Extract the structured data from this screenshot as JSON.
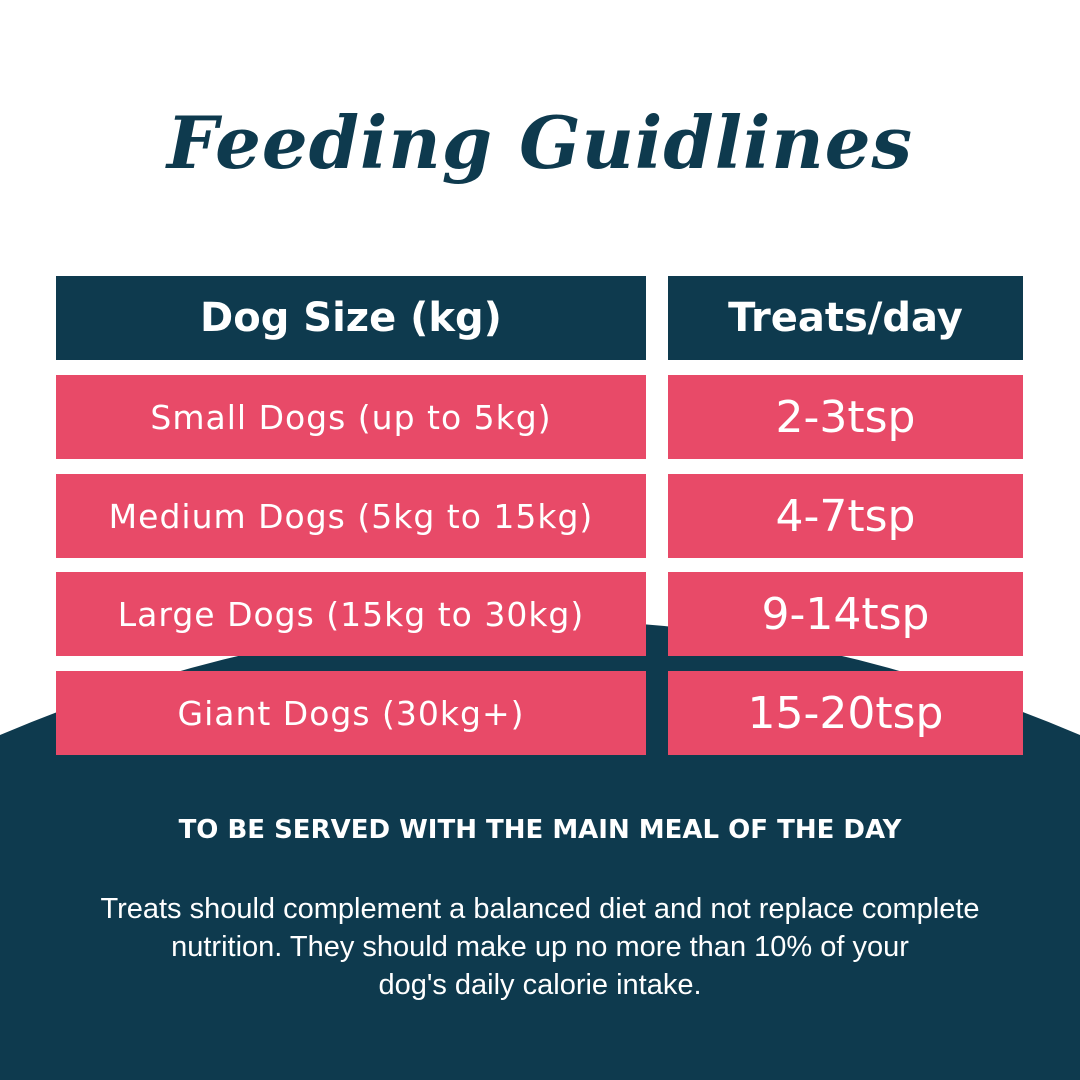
{
  "title": "Feeding Guidlines",
  "table": {
    "headers": [
      "Dog Size (kg)",
      "Treats/day"
    ],
    "rows": [
      [
        "Small Dogs (up to 5kg)",
        "2-3tsp"
      ],
      [
        "Medium Dogs (5kg to 15kg)",
        "4-7tsp"
      ],
      [
        "Large Dogs (15kg to 30kg)",
        "9-14tsp"
      ],
      [
        "Giant Dogs (30kg+)",
        "15-20tsp"
      ]
    ]
  },
  "note": {
    "heading": "TO BE SERVED WITH THE MAIN MEAL OF THE DAY",
    "lines": [
      "Treats should complement a balanced diet and not replace complete",
      "nutrition. They should make up no more than 10% of your",
      "dog's daily calorie intake."
    ]
  }
}
